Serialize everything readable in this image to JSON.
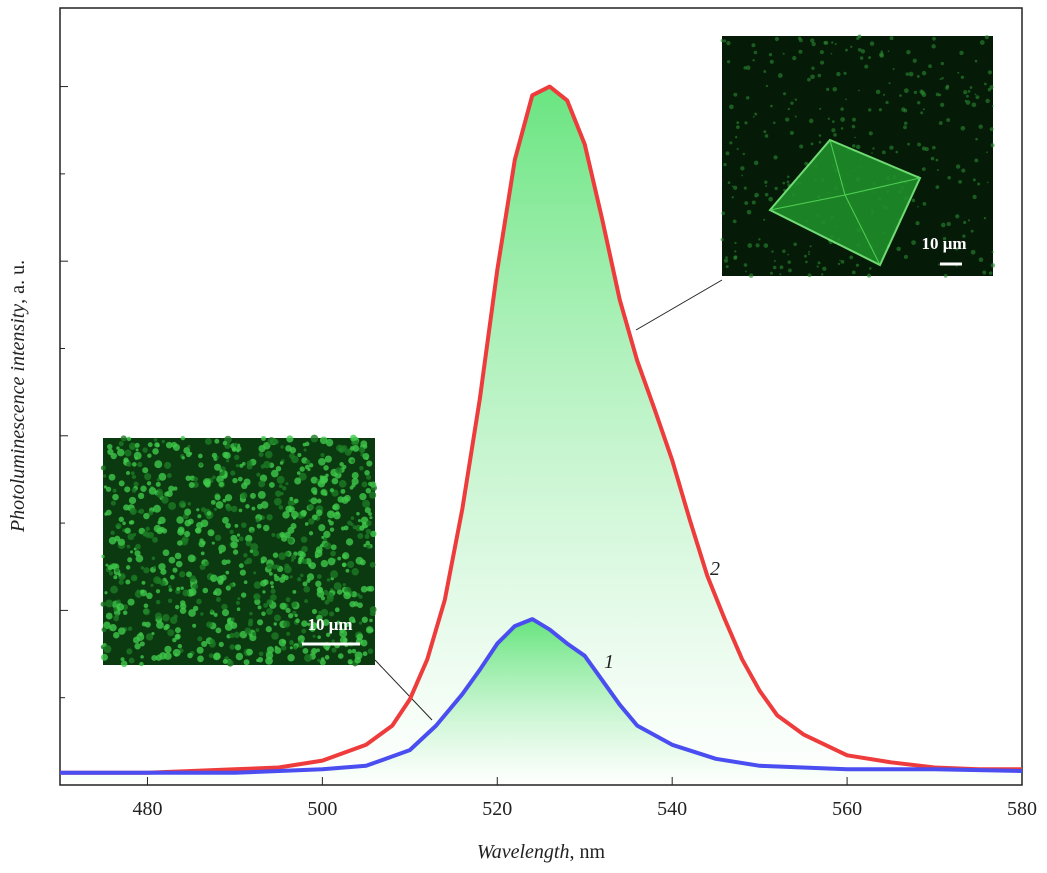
{
  "chart_data": {
    "type": "line",
    "xlabel_name": "Wavelength",
    "xlabel_unit": ", nm",
    "ylabel_name": "Photoluminescence intensity",
    "ylabel_unit": ", a. u.",
    "xlim": [
      470,
      580
    ],
    "xticks": [
      480,
      500,
      520,
      540,
      560,
      580
    ],
    "ylim": [
      0,
      4.45
    ],
    "yticks": [
      0.5,
      1,
      1.5,
      2,
      2.5,
      3,
      3.5,
      4
    ],
    "series": [
      {
        "name": "1",
        "color": "#4a4df0",
        "x": [
          470,
          480,
          490,
          500,
          505,
          510,
          513,
          516,
          518,
          520,
          522,
          524,
          526,
          528,
          530,
          532,
          534,
          536,
          540,
          545,
          550,
          560,
          570,
          580
        ],
        "values": [
          0.07,
          0.07,
          0.07,
          0.09,
          0.11,
          0.2,
          0.34,
          0.52,
          0.66,
          0.81,
          0.91,
          0.95,
          0.89,
          0.81,
          0.74,
          0.6,
          0.46,
          0.34,
          0.23,
          0.15,
          0.11,
          0.09,
          0.09,
          0.08
        ]
      },
      {
        "name": "2",
        "color": "#ee3b3b",
        "x": [
          470,
          480,
          490,
          495,
          500,
          505,
          508,
          510,
          512,
          514,
          516,
          518,
          520,
          522,
          524,
          526,
          528,
          530,
          532,
          534,
          536,
          538,
          540,
          542,
          544,
          546,
          548,
          550,
          552,
          555,
          560,
          565,
          570,
          575,
          580
        ],
        "values": [
          0.07,
          0.07,
          0.09,
          0.1,
          0.14,
          0.23,
          0.34,
          0.49,
          0.72,
          1.06,
          1.58,
          2.21,
          2.95,
          3.58,
          3.95,
          4.0,
          3.92,
          3.67,
          3.24,
          2.78,
          2.43,
          2.15,
          1.86,
          1.52,
          1.2,
          0.95,
          0.72,
          0.54,
          0.4,
          0.29,
          0.17,
          0.13,
          0.1,
          0.09,
          0.09
        ]
      }
    ],
    "scale_bar_1": "10 μm",
    "scale_bar_2": "10 μm"
  }
}
